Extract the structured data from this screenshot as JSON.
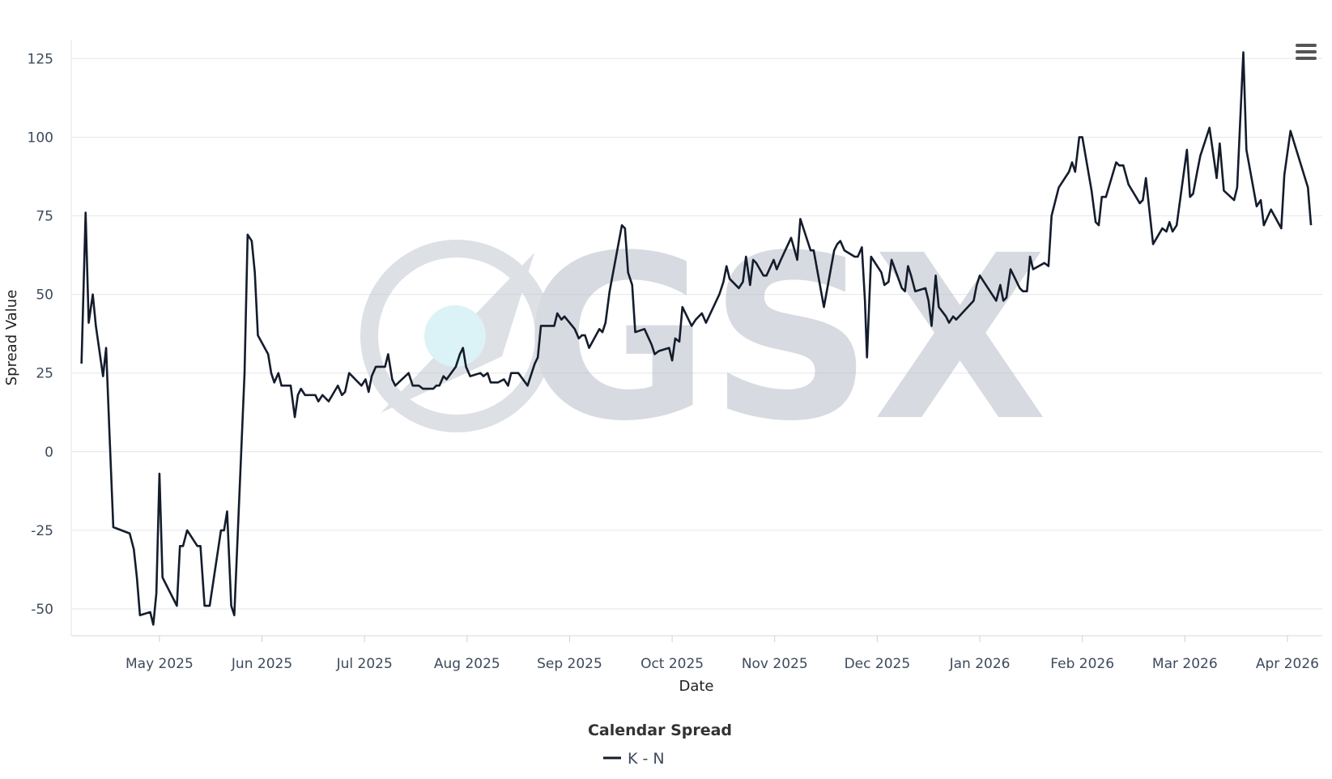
{
  "chart_data": {
    "type": "line",
    "watermark": "GSX",
    "xlabel": "Date",
    "ylabel": "Spread Value",
    "legend_title": "Calendar Spread",
    "legend": "bottom",
    "grid": true,
    "xlim": [
      4.14,
      16.34
    ],
    "xticks": [
      {
        "value": 5,
        "label": "May 2025"
      },
      {
        "value": 6,
        "label": "Jun 2025"
      },
      {
        "value": 7,
        "label": "Jul 2025"
      },
      {
        "value": 8,
        "label": "Aug 2025"
      },
      {
        "value": 9,
        "label": "Sep 2025"
      },
      {
        "value": 10,
        "label": "Oct 2025"
      },
      {
        "value": 11,
        "label": "Nov 2025"
      },
      {
        "value": 12,
        "label": "Dec 2025"
      },
      {
        "value": 13,
        "label": "Jan 2026"
      },
      {
        "value": 14,
        "label": "Feb 2026"
      },
      {
        "value": 15,
        "label": "Mar 2026"
      },
      {
        "value": 16,
        "label": "Apr 2026"
      }
    ],
    "ylim": [
      -58.5,
      131
    ],
    "yticks": [
      -50,
      -25,
      0,
      25,
      50,
      75,
      100,
      125
    ],
    "x": [
      4.24,
      4.28,
      4.31,
      4.35,
      4.38,
      4.45,
      4.48,
      4.51,
      4.55,
      4.71,
      4.75,
      4.78,
      4.81,
      4.91,
      4.94,
      4.97,
      5.0,
      5.03,
      5.17,
      5.2,
      5.23,
      5.27,
      5.37,
      5.4,
      5.44,
      5.49,
      5.6,
      5.63,
      5.66,
      5.7,
      5.73,
      5.83,
      5.86,
      5.9,
      5.93,
      5.96,
      6.06,
      6.09,
      6.12,
      6.16,
      6.19,
      6.28,
      6.32,
      6.35,
      6.38,
      6.42,
      6.52,
      6.55,
      6.59,
      6.65,
      6.74,
      6.78,
      6.81,
      6.85,
      6.97,
      7.01,
      7.04,
      7.07,
      7.11,
      7.2,
      7.23,
      7.27,
      7.3,
      7.43,
      7.47,
      7.53,
      7.57,
      7.67,
      7.7,
      7.73,
      7.77,
      7.8,
      7.89,
      7.93,
      7.96,
      7.99,
      8.03,
      8.13,
      8.16,
      8.2,
      8.23,
      8.3,
      8.36,
      8.4,
      8.43,
      8.5,
      8.59,
      8.66,
      8.69,
      8.72,
      8.85,
      8.88,
      8.92,
      8.95,
      9.05,
      9.09,
      9.12,
      9.15,
      9.19,
      9.29,
      9.32,
      9.35,
      9.39,
      9.51,
      9.54,
      9.57,
      9.61,
      9.64,
      9.73,
      9.8,
      9.83,
      9.87,
      9.97,
      10.0,
      10.03,
      10.07,
      10.1,
      10.13,
      10.19,
      10.23,
      10.29,
      10.33,
      10.46,
      10.5,
      10.53,
      10.56,
      10.65,
      10.69,
      10.72,
      10.76,
      10.79,
      10.82,
      10.89,
      10.92,
      10.99,
      11.02,
      11.06,
      11.16,
      11.22,
      11.25,
      11.35,
      11.38,
      11.48,
      11.58,
      11.61,
      11.64,
      11.68,
      11.78,
      11.81,
      11.85,
      11.88,
      11.9,
      11.94,
      12.04,
      12.07,
      12.11,
      12.14,
      12.24,
      12.27,
      12.3,
      12.33,
      12.37,
      12.47,
      12.5,
      12.53,
      12.57,
      12.6,
      12.67,
      12.7,
      12.74,
      12.77,
      12.94,
      12.97,
      13.0,
      13.16,
      13.2,
      13.23,
      13.26,
      13.3,
      13.39,
      13.42,
      13.46,
      13.49,
      13.52,
      13.63,
      13.67,
      13.7,
      13.77,
      13.87,
      13.9,
      13.93,
      13.97,
      14.0,
      14.09,
      14.13,
      14.16,
      14.19,
      14.23,
      14.33,
      14.36,
      14.4,
      14.45,
      14.56,
      14.59,
      14.62,
      14.69,
      14.78,
      14.82,
      14.85,
      14.88,
      14.92,
      15.02,
      15.05,
      15.08,
      15.12,
      15.15,
      15.24,
      15.31,
      15.34,
      15.38,
      15.48,
      15.51,
      15.57,
      15.6,
      15.7,
      15.74,
      15.77,
      15.84,
      15.94,
      15.97,
      16.03,
      16.2,
      16.23
    ],
    "series": [
      {
        "name": "K - N",
        "color": "#141c2c",
        "values": [
          28,
          76,
          41,
          50,
          40,
          24,
          33,
          8,
          -24,
          -26,
          -31,
          -40,
          -52,
          -51,
          -55,
          -45,
          -7,
          -40,
          -49,
          -30,
          -30,
          -25,
          -30,
          -30,
          -49,
          -49,
          -25,
          -25,
          -19,
          -49,
          -52,
          25,
          69,
          67,
          57,
          37,
          31,
          25,
          22,
          25,
          21,
          21,
          11,
          18,
          20,
          18,
          18,
          16,
          18,
          16,
          21,
          18,
          19,
          25,
          21,
          23,
          19,
          24,
          27,
          27,
          31,
          23,
          21,
          25,
          21,
          21,
          20,
          20,
          21,
          21,
          24,
          23,
          27,
          31,
          33,
          27,
          24,
          25,
          24,
          25,
          22,
          22,
          23,
          21,
          25,
          25,
          21,
          28,
          30,
          40,
          40,
          44,
          42,
          43,
          39,
          36,
          37,
          37,
          33,
          39,
          38,
          41,
          51,
          72,
          71,
          57,
          53,
          38,
          39,
          34,
          31,
          32,
          33,
          29,
          36,
          35,
          46,
          44,
          40,
          42,
          44,
          41,
          50,
          54,
          59,
          55,
          52,
          54,
          62,
          53,
          61,
          60,
          56,
          56,
          61,
          58,
          61,
          68,
          61,
          74,
          64,
          64,
          46,
          64,
          66,
          67,
          64,
          62,
          62,
          65,
          48,
          30,
          62,
          57,
          53,
          54,
          61,
          52,
          51,
          59,
          56,
          51,
          52,
          48,
          40,
          56,
          46,
          43,
          41,
          43,
          42,
          48,
          53,
          56,
          48,
          53,
          48,
          49,
          58,
          52,
          51,
          51,
          62,
          58,
          60,
          59,
          75,
          84,
          89,
          92,
          89,
          100,
          100,
          83,
          73,
          72,
          81,
          81,
          92,
          91,
          91,
          85,
          79,
          80,
          87,
          66,
          71,
          70,
          73,
          70,
          72,
          96,
          81,
          82,
          89,
          94,
          103,
          87,
          98,
          83,
          80,
          84,
          127,
          96,
          78,
          80,
          72,
          77,
          71,
          88,
          102,
          84,
          72
        ]
      }
    ]
  }
}
